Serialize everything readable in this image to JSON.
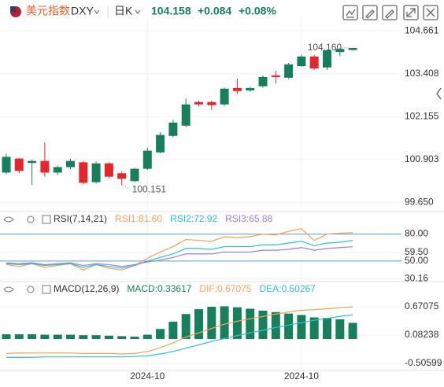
{
  "header": {
    "name": "美元指数",
    "symbol": "DXY",
    "period": "日K",
    "price": "104.158",
    "change": "+0.084",
    "change_pct": "+0.08%"
  },
  "chart_data": [
    {
      "type": "candlestick",
      "categories": [
        null,
        null,
        null,
        null,
        null,
        null,
        null,
        null,
        null,
        null,
        null,
        "2024-10",
        null,
        null,
        null,
        null,
        null,
        null,
        null,
        null,
        null,
        null,
        null,
        "2024-10",
        null,
        null,
        null,
        null
      ],
      "open": [
        100.52,
        100.93,
        100.8,
        100.86,
        100.52,
        100.68,
        100.82,
        100.24,
        100.79,
        100.5,
        100.27,
        100.63,
        101.11,
        101.59,
        101.89,
        102.58,
        102.58,
        102.51,
        102.99,
        102.92,
        103.04,
        103.36,
        103.29,
        103.63,
        103.91,
        103.59,
        104.04,
        104.1
      ],
      "high": [
        101.07,
        100.95,
        100.9,
        101.4,
        100.72,
        100.92,
        100.86,
        100.84,
        100.82,
        100.55,
        100.66,
        101.25,
        101.7,
        102.06,
        102.68,
        102.62,
        102.62,
        103.0,
        103.26,
        103.02,
        103.36,
        103.49,
        103.72,
        103.96,
        103.95,
        104.12,
        104.15,
        104.16
      ],
      "low": [
        100.47,
        100.5,
        100.16,
        100.4,
        100.45,
        100.62,
        100.18,
        100.2,
        100.36,
        100.151,
        100.24,
        100.6,
        101.08,
        101.55,
        101.85,
        102.45,
        102.35,
        102.47,
        102.81,
        102.88,
        103.0,
        103.13,
        103.25,
        103.6,
        103.52,
        103.52,
        103.92,
        104.08
      ],
      "close": [
        100.98,
        100.57,
        100.86,
        100.52,
        100.68,
        100.86,
        100.22,
        100.79,
        100.4,
        100.34,
        100.63,
        101.16,
        101.62,
        101.98,
        102.51,
        102.51,
        102.49,
        102.97,
        102.9,
        102.99,
        103.31,
        103.31,
        103.68,
        103.91,
        103.56,
        104.09,
        104.13,
        104.158
      ],
      "up_color": "#17805a",
      "down_color": "#e3272d",
      "ylim": [
        99.45,
        104.87
      ],
      "yticks": [
        104.661,
        103.408,
        102.155,
        100.903,
        {
          "value": 99.65,
          "label": "99.650"
        }
      ],
      "annotations": [
        {
          "value": 104.16,
          "label": "104.160"
        },
        {
          "value": 100.151,
          "label": "100.151"
        }
      ]
    },
    {
      "type": "line",
      "title": "RSI(7,14,21)",
      "series": [
        {
          "name": "RSI1:81.60",
          "color": "#f5a25d",
          "values": [
            46,
            44,
            47,
            43,
            45,
            47,
            40,
            46,
            42,
            40,
            45,
            53,
            60,
            66,
            74,
            73,
            72,
            77,
            76,
            77,
            80,
            79,
            83,
            86,
            73,
            80,
            81,
            81.6
          ]
        },
        {
          "name": "RSI2:72.92",
          "color": "#2fbfd3",
          "values": [
            47,
            46,
            47,
            45,
            46,
            47,
            43,
            46,
            44,
            42,
            45,
            50,
            54,
            58,
            64,
            64,
            63,
            66,
            66,
            66,
            68,
            68,
            70,
            72,
            67,
            70,
            71,
            72.92
          ]
        },
        {
          "name": "RSI3:65.88",
          "color": "#9b7fd2",
          "values": [
            48,
            47,
            48,
            46,
            47,
            48,
            45,
            47,
            46,
            44,
            46,
            49,
            51,
            54,
            58,
            58,
            58,
            60,
            60,
            60,
            62,
            62,
            63,
            65,
            62,
            64,
            65,
            65.88
          ]
        }
      ],
      "ylim": [
        28,
        91
      ],
      "yticks": [
        {
          "value": 80,
          "label": "80.00"
        },
        {
          "value": 59.5,
          "label": "59.50"
        },
        {
          "value": 50,
          "label": "50.00"
        },
        30.16
      ],
      "levels": [
        80,
        50
      ],
      "level_color": "#5b9bd5"
    },
    {
      "type": "macd",
      "title": "MACD(12,26,9)",
      "series": [
        {
          "name": "MACD:0.33617",
          "color": "#17805a",
          "style": "bar",
          "values": [
            0.1,
            0.1,
            0.1,
            0.09,
            0.09,
            0.09,
            0.08,
            0.08,
            0.07,
            0.06,
            0.05,
            0.09,
            0.21,
            0.36,
            0.52,
            0.62,
            0.67,
            0.68,
            0.66,
            0.63,
            0.59,
            0.56,
            0.53,
            0.5,
            0.45,
            0.44,
            0.41,
            0.33617
          ]
        },
        {
          "name": "DIF:0.67075",
          "color": "#f5a25d",
          "style": "line",
          "values": [
            -0.3,
            -0.29,
            -0.29,
            -0.29,
            -0.29,
            -0.29,
            -0.3,
            -0.3,
            -0.3,
            -0.31,
            -0.3,
            -0.26,
            -0.18,
            -0.08,
            0.04,
            0.13,
            0.22,
            0.31,
            0.37,
            0.42,
            0.47,
            0.52,
            0.56,
            0.6,
            0.61,
            0.63,
            0.65,
            0.67075
          ]
        },
        {
          "name": "DEA:0.50267",
          "color": "#2fbfd3",
          "style": "line",
          "values": [
            -0.38,
            -0.38,
            -0.38,
            -0.37,
            -0.37,
            -0.37,
            -0.37,
            -0.37,
            -0.37,
            -0.37,
            -0.36,
            -0.35,
            -0.31,
            -0.26,
            -0.19,
            -0.12,
            -0.05,
            0.01,
            0.07,
            0.13,
            0.18,
            0.24,
            0.29,
            0.34,
            0.39,
            0.43,
            0.47,
            0.50267
          ]
        }
      ],
      "ylim": [
        -0.637,
        0.965
      ],
      "yticks": [
        0.67075,
        0.08238,
        -0.50599
      ]
    }
  ]
}
